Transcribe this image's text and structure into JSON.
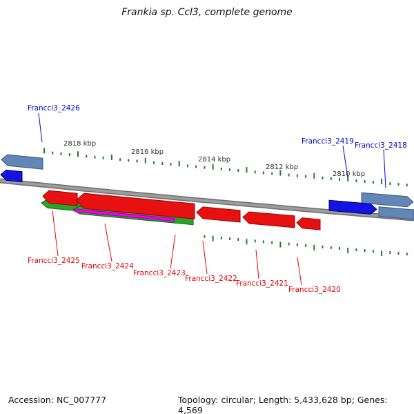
{
  "title": "Frankia sp. Ccl3, complete genome",
  "status_bar": {
    "accession": "Accession: NC_007777",
    "topology": "Topology: circular; Length: 5,433,628 bp; Genes: 4,569"
  },
  "ruler": {
    "tick_labels": [
      "2818 kbp",
      "2816 kbp",
      "2814 kbp",
      "2812 kbp",
      "2810 kbp"
    ]
  },
  "gene_labels": {
    "forward": [
      {
        "text": "Francci3_2426"
      },
      {
        "text": "Francci3_2419"
      },
      {
        "text": "Francci3_2418"
      }
    ],
    "reverse": [
      {
        "text": "Francci3_2425"
      },
      {
        "text": "Francci3_2424"
      },
      {
        "text": "Francci3_2423"
      },
      {
        "text": "Francci3_2422"
      },
      {
        "text": "Francci3_2421"
      },
      {
        "text": "Francci3_2420"
      }
    ]
  },
  "colors": {
    "track": "#6e6e6e",
    "track_inner": "#9c9c9c",
    "tick": "#1e7d1e",
    "label_blue": "#0000d0",
    "label_red": "#e80000",
    "ruler_label": "#303030",
    "gene_red": "#e81111",
    "gene_red_edge": "#9b0000",
    "gene_green": "#28a428",
    "gene_green_edge": "#146114",
    "gene_blue": "#1414e0",
    "gene_blue_edge": "#00007a",
    "gene_steel": "#6286b6",
    "gene_steel_edge": "#39567f",
    "gene_magenta": "#f000f0",
    "gene_magenta_edge": "#a000a0",
    "gene_yellow": "#cfcf10",
    "gene_yellow_edge": "#8f8f00"
  }
}
